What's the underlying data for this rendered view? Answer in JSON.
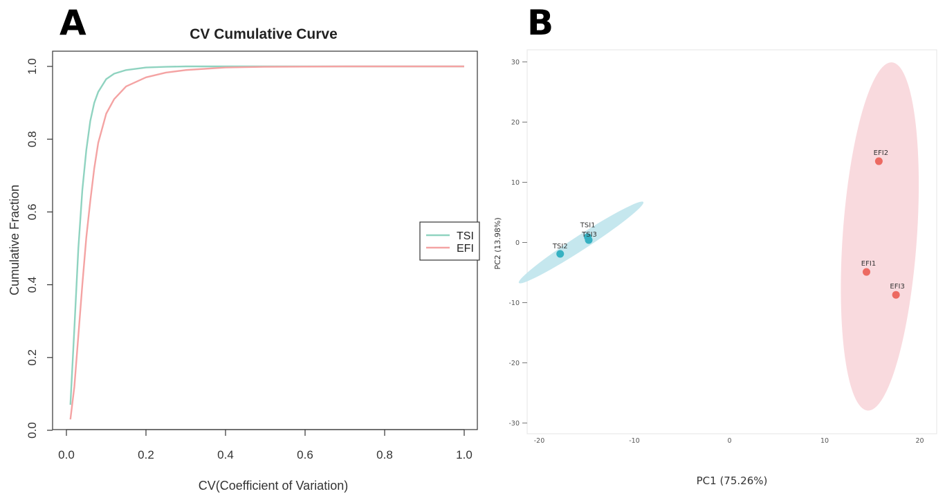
{
  "panel_labels": {
    "a": "A",
    "b": "B"
  },
  "chart_data": [
    {
      "id": "A",
      "type": "line",
      "title": "CV Cumulative Curve",
      "xlabel": "CV(Coefficient of Variation)",
      "ylabel": "Cumulative Fraction",
      "xlim": [
        0.0,
        1.0
      ],
      "ylim": [
        0.0,
        1.0
      ],
      "xticks": [
        "0.0",
        "0.2",
        "0.4",
        "0.6",
        "0.8",
        "1.0"
      ],
      "yticks": [
        "0.0",
        "0.2",
        "0.4",
        "0.6",
        "0.8",
        "1.0"
      ],
      "legend_position": "right",
      "series": [
        {
          "name": "TSI",
          "color": "#8fd3c0",
          "x": [
            0.01,
            0.02,
            0.03,
            0.04,
            0.05,
            0.06,
            0.07,
            0.08,
            0.1,
            0.12,
            0.15,
            0.2,
            0.25,
            0.3,
            0.4,
            0.5,
            0.7,
            1.0
          ],
          "y": [
            0.07,
            0.28,
            0.5,
            0.66,
            0.77,
            0.85,
            0.9,
            0.93,
            0.965,
            0.98,
            0.99,
            0.997,
            0.999,
            1.0,
            1.0,
            1.0,
            1.0,
            1.0
          ]
        },
        {
          "name": "EFI",
          "color": "#f4a3a3",
          "x": [
            0.01,
            0.02,
            0.03,
            0.04,
            0.05,
            0.06,
            0.07,
            0.08,
            0.1,
            0.12,
            0.15,
            0.2,
            0.25,
            0.3,
            0.4,
            0.5,
            0.7,
            1.0
          ],
          "y": [
            0.03,
            0.12,
            0.26,
            0.4,
            0.53,
            0.63,
            0.72,
            0.79,
            0.87,
            0.91,
            0.945,
            0.97,
            0.983,
            0.99,
            0.997,
            0.999,
            1.0,
            1.0
          ]
        }
      ]
    },
    {
      "id": "B",
      "type": "scatter",
      "xlabel": "PC1 (75.26%)",
      "ylabel": "PC2 (13.98%)",
      "xlim": [
        -22,
        22
      ],
      "ylim": [
        -32,
        31
      ],
      "xticks": [
        -20,
        -10,
        0,
        10,
        20
      ],
      "yticks": [
        30,
        20,
        10,
        0,
        -10,
        -20,
        -30
      ],
      "groups": [
        {
          "name": "TSI",
          "color": "#36b1c2",
          "ellipse_color": "#bfe4ec",
          "ellipse": {
            "cx": -15.6,
            "cy": 0,
            "rx": 7.8,
            "ry": 1.2,
            "angle_deg": 33
          },
          "points": [
            {
              "label": "TSI1",
              "x": -14.9,
              "y": 0.9
            },
            {
              "label": "TSI3",
              "x": -14.8,
              "y": 0.4
            },
            {
              "label": "TSI2",
              "x": -17.8,
              "y": -1.9
            }
          ]
        },
        {
          "name": "EFI",
          "color": "#ec6a62",
          "ellipse_color": "#f8d6da",
          "ellipse": {
            "cx": 15.8,
            "cy": 1.0,
            "rx": 3.9,
            "ry": 29.0,
            "angle_deg": -4
          },
          "points": [
            {
              "label": "EFI2",
              "x": 15.7,
              "y": 13.5
            },
            {
              "label": "EFI1",
              "x": 14.4,
              "y": -4.9
            },
            {
              "label": "EFI3",
              "x": 17.5,
              "y": -8.7
            }
          ]
        }
      ]
    }
  ]
}
